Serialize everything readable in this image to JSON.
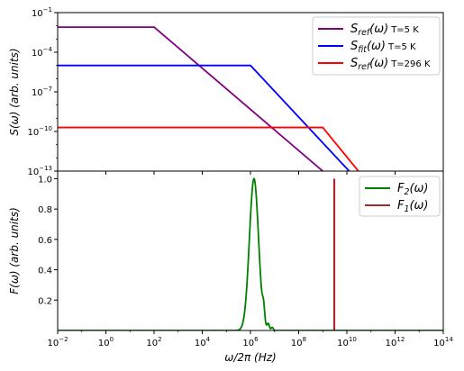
{
  "chart_data": [
    {
      "type": "line",
      "panel": "top",
      "ylabel": "S(ω) (arb. units)",
      "xscale": "log",
      "yscale": "log",
      "xlim": [
        0.01,
        100000000000000.0
      ],
      "ylim": [
        1e-13,
        0.1
      ],
      "yticks": [
        1e-13,
        1e-10,
        1e-07,
        0.0001,
        0.1
      ],
      "ytick_labels": [
        {
          "base": "10",
          "exp": "−13"
        },
        {
          "base": "10",
          "exp": "−10"
        },
        {
          "base": "10",
          "exp": "−7"
        },
        {
          "base": "10",
          "exp": "−4"
        },
        {
          "base": "10",
          "exp": "−1"
        }
      ],
      "legend_position": "top-right",
      "series": [
        {
          "name": "S_ref(ω) T=5 K",
          "label_sym": "S",
          "label_sub": "ref",
          "label_arg": "(ω)",
          "label_note": "T=5 K",
          "color": "#800080",
          "x": [
            0.01,
            100,
            1000000000.0
          ],
          "y": [
            0.008,
            0.008,
            1e-13
          ]
        },
        {
          "name": "S_fit(ω) T=5 K",
          "label_sym": "S",
          "label_sub": "fit",
          "label_arg": "(ω)",
          "label_note": "T=5 K",
          "color": "#0000ff",
          "x": [
            0.01,
            1000000.0,
            12500000000.0
          ],
          "y": [
            1e-05,
            1e-05,
            1e-13
          ]
        },
        {
          "name": "S_ref(ω) T=296 K",
          "label_sym": "S",
          "label_sub": "ref",
          "label_arg": "(ω)",
          "label_note": "T=296 K",
          "color": "#ff0000",
          "x": [
            0.01,
            1000000000.0,
            30000000000.0
          ],
          "y": [
            2e-10,
            2e-10,
            1e-13
          ]
        }
      ]
    },
    {
      "type": "line",
      "panel": "bottom",
      "ylabel": "F(ω) (arb. units)",
      "xlabel": "ω/2π (Hz)",
      "xscale": "log",
      "xlim": [
        0.01,
        100000000000000.0
      ],
      "ylim": [
        0,
        1.05
      ],
      "yticks": [
        0.2,
        0.4,
        0.6,
        0.8,
        1.0
      ],
      "ytick_labels": [
        "0.2",
        "0.4",
        "0.6",
        "0.8",
        "1.0"
      ],
      "xticks": [
        0.01,
        1,
        100,
        10000.0,
        1000000.0,
        100000000.0,
        10000000000.0,
        1000000000000.0,
        100000000000000.0
      ],
      "xtick_labels": [
        {
          "base": "10",
          "exp": "−2"
        },
        {
          "base": "10",
          "exp": "0"
        },
        {
          "base": "10",
          "exp": "2"
        },
        {
          "base": "10",
          "exp": "4"
        },
        {
          "base": "10",
          "exp": "6"
        },
        {
          "base": "10",
          "exp": "8"
        },
        {
          "base": "10",
          "exp": "10"
        },
        {
          "base": "10",
          "exp": "12"
        },
        {
          "base": "10",
          "exp": "14"
        }
      ],
      "legend_position": "top-right",
      "series": [
        {
          "name": "F_2(ω)",
          "label_sym": "F",
          "label_sub": "2",
          "label_arg": "(ω)",
          "color": "#008000",
          "peak_x": 1400000.0,
          "peak_y": 1.0,
          "log_width": 0.19,
          "sidelobes": [
            {
              "x": 3500000.0,
              "y": 0.09
            },
            {
              "x": 5500000.0,
              "y": 0.04
            },
            {
              "x": 8000000.0,
              "y": 0.02
            }
          ]
        },
        {
          "name": "F_1(ω)",
          "label_sym": "F",
          "label_sub": "1",
          "label_arg": "(ω)",
          "color": "#a52a2a",
          "x": [
            3000000000.0,
            3000000000.0
          ],
          "y": [
            0,
            1.0
          ]
        }
      ]
    }
  ]
}
